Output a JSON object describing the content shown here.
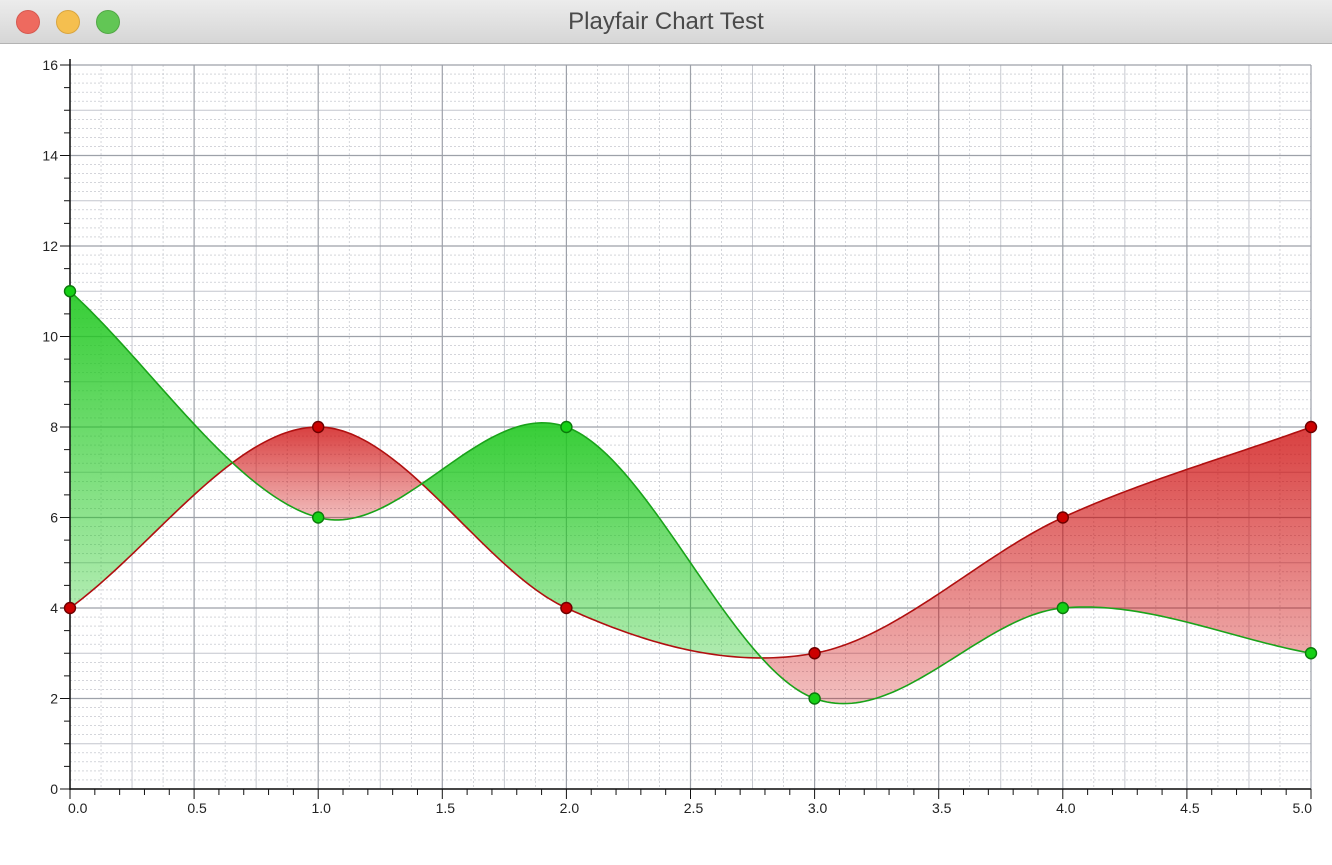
{
  "window": {
    "title": "Playfair Chart Test",
    "buttons": {
      "close": "close",
      "minimize": "minimize",
      "zoom": "zoom"
    }
  },
  "chart_data": {
    "type": "area",
    "title": "",
    "xlabel": "",
    "ylabel": "",
    "xlim": [
      0,
      5
    ],
    "ylim": [
      0,
      16
    ],
    "x_ticks": [
      0.0,
      0.5,
      1.0,
      1.5,
      2.0,
      2.5,
      3.0,
      3.5,
      4.0,
      4.5,
      5.0
    ],
    "x_tick_labels": [
      "0.0",
      "0.5",
      "1.0",
      "1.5",
      "2.0",
      "2.5",
      "3.0",
      "3.5",
      "4.0",
      "4.5",
      "5.0"
    ],
    "y_ticks": [
      0,
      2,
      4,
      6,
      8,
      10,
      12,
      14,
      16
    ],
    "y_tick_labels": [
      "0",
      "2",
      "4",
      "6",
      "8",
      "10",
      "12",
      "14",
      "16"
    ],
    "grid": true,
    "x": [
      0,
      1,
      2,
      3,
      4,
      5
    ],
    "series": [
      {
        "name": "red",
        "color": "#cc0000",
        "values": [
          4,
          8,
          4,
          3,
          6,
          8
        ]
      },
      {
        "name": "green",
        "color": "#00cc00",
        "values": [
          11,
          6,
          8,
          2,
          4,
          3
        ]
      }
    ]
  }
}
